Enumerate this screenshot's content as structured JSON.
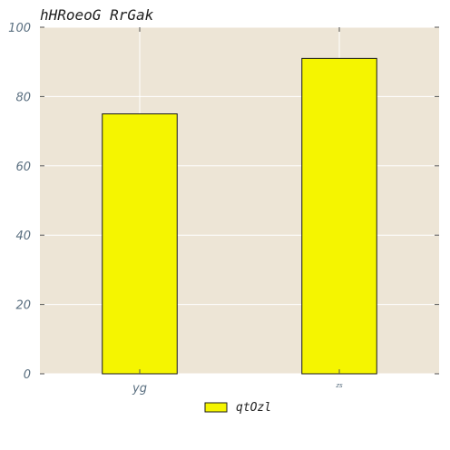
{
  "chart_data": {
    "type": "bar",
    "title": "hHRoeoG  RrGak",
    "categories": [
      "yg",
      "zs"
    ],
    "series": [
      {
        "name": "qtOzl",
        "values": [
          75,
          91
        ]
      }
    ],
    "ylim": [
      0,
      100
    ],
    "yticks": [
      0,
      20,
      40,
      60,
      80,
      100
    ],
    "grid": true,
    "legend_position": "bottom-center",
    "colors": {
      "bar": "#f5f500",
      "bar_edge": "#1a1a1a",
      "plot_background": "#ede5d6",
      "grid": "#ffffff",
      "axis_text": "#5a6f80"
    }
  }
}
